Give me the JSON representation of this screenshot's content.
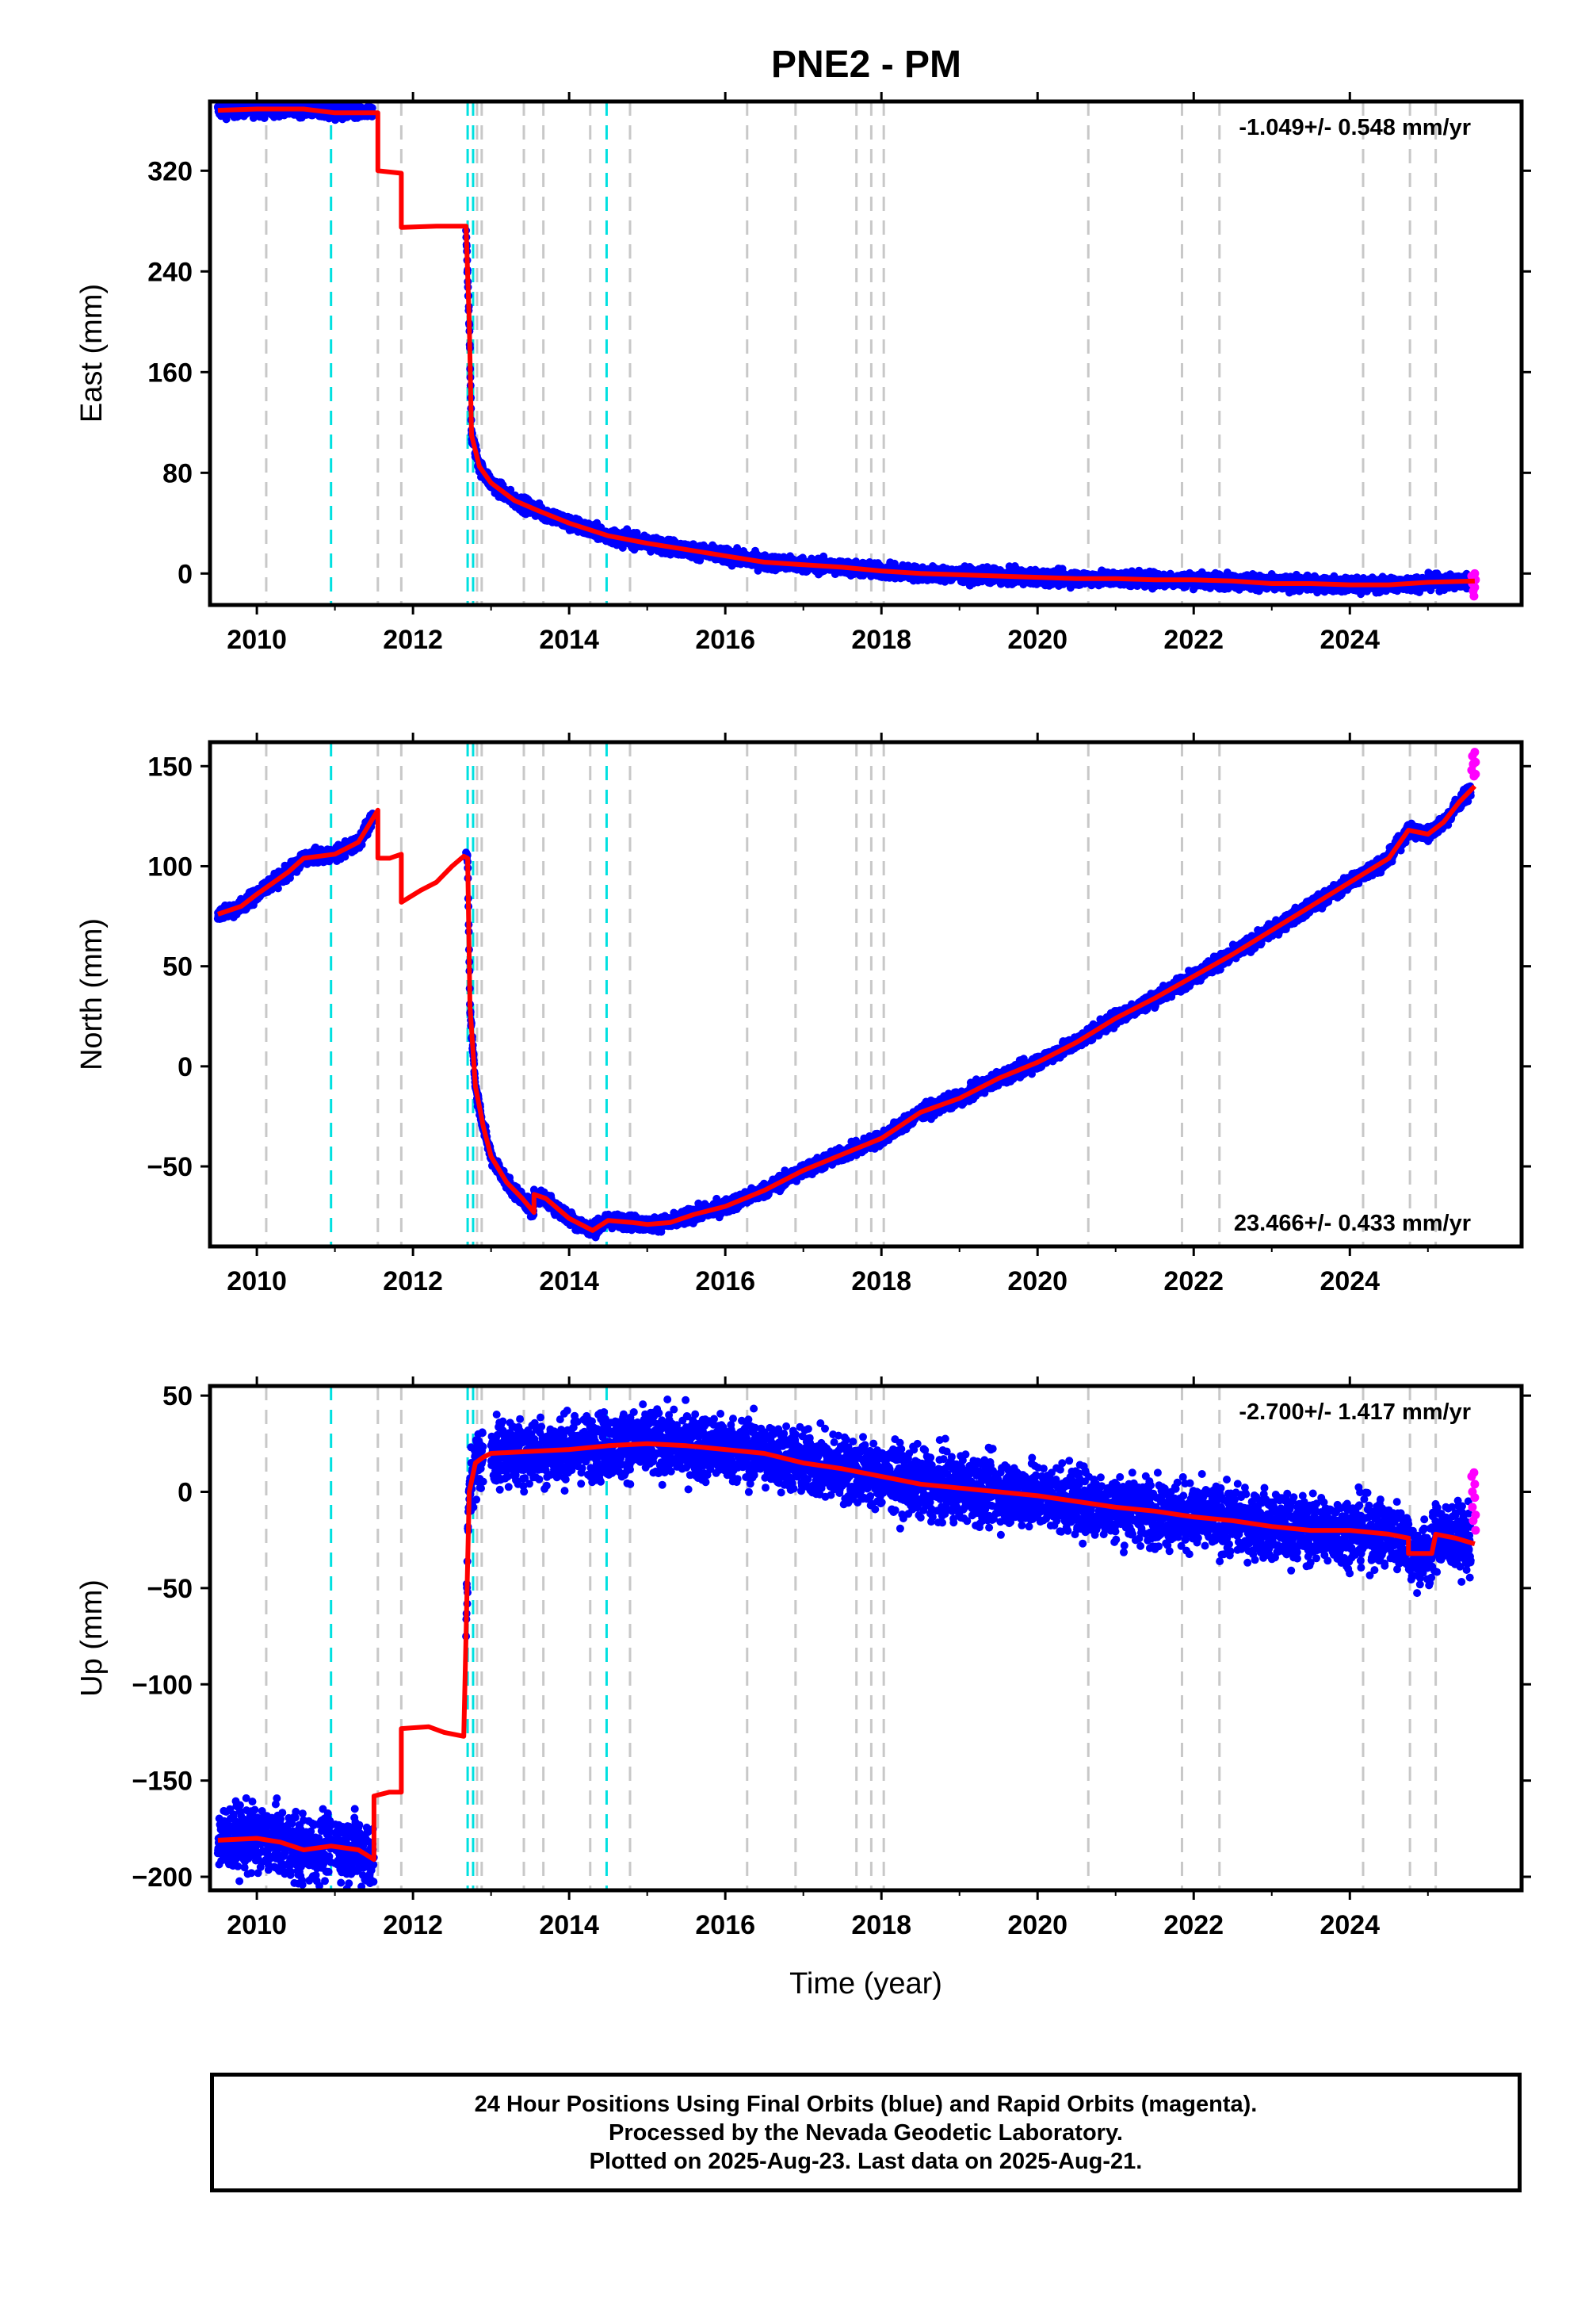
{
  "title": "PNE2 - PM",
  "colors": {
    "final_points": "#0000ff",
    "rapid_points": "#ff00ff",
    "model": "#ff0000",
    "gray_event": "#c8c8c8",
    "cyan_event": "#00e0e0"
  },
  "events": {
    "gray": [
      2010.12,
      2011.55,
      2011.85,
      2012.82,
      2012.88,
      2013.42,
      2013.67,
      2014.27,
      2014.78,
      2016.28,
      2016.9,
      2017.68,
      2017.87,
      2018.03,
      2020.65,
      2021.85,
      2022.33,
      2024.17,
      2024.77,
      2025.1
    ],
    "cyan": [
      2010.95,
      2012.7,
      2012.77,
      2014.48
    ]
  },
  "chart_data": [
    {
      "type": "scatter",
      "name": "east",
      "ylabel": "East (mm)",
      "xlim": [
        2009.4,
        2026.2
      ],
      "ylim": [
        -25,
        375
      ],
      "xticks": [
        "2010",
        "2012",
        "2014",
        "2016",
        "2018",
        "2020",
        "2022",
        "2024"
      ],
      "yticks": [
        "320",
        "240",
        "160",
        "80",
        "0"
      ],
      "ytick_values": [
        320,
        240,
        160,
        80,
        0
      ],
      "rate": "-1.049+/- 0.548 mm/yr",
      "rate_position": "top-right",
      "scatter": 4,
      "model": [
        [
          2009.5,
          368
        ],
        [
          2010.0,
          369
        ],
        [
          2010.6,
          369
        ],
        [
          2011.0,
          366
        ],
        [
          2011.5,
          366
        ],
        [
          2011.55,
          366
        ],
        [
          2011.55,
          320
        ],
        [
          2011.85,
          318
        ],
        [
          2011.85,
          275
        ],
        [
          2012.3,
          276
        ],
        [
          2012.68,
          276
        ],
        [
          2012.72,
          200
        ],
        [
          2012.75,
          110
        ],
        [
          2012.85,
          85
        ],
        [
          2013.0,
          72
        ],
        [
          2013.3,
          58
        ],
        [
          2013.6,
          50
        ],
        [
          2014.0,
          40
        ],
        [
          2014.5,
          30
        ],
        [
          2015.0,
          24
        ],
        [
          2015.5,
          19
        ],
        [
          2016.0,
          14
        ],
        [
          2016.5,
          9
        ],
        [
          2017.0,
          7
        ],
        [
          2017.5,
          5
        ],
        [
          2018.0,
          2
        ],
        [
          2018.5,
          0
        ],
        [
          2019.0,
          -1
        ],
        [
          2019.5,
          -2
        ],
        [
          2020.0,
          -3
        ],
        [
          2020.5,
          -4
        ],
        [
          2021.0,
          -4
        ],
        [
          2021.5,
          -5
        ],
        [
          2022.0,
          -5
        ],
        [
          2022.5,
          -6
        ],
        [
          2023.0,
          -8
        ],
        [
          2023.5,
          -8
        ],
        [
          2024.0,
          -9
        ],
        [
          2024.5,
          -9
        ],
        [
          2025.0,
          -7
        ],
        [
          2025.6,
          -6
        ]
      ],
      "final_segments": [
        [
          2009.5,
          2010.95
        ],
        [
          2011.0,
          2011.48
        ],
        [
          2012.68,
          2025.55
        ]
      ],
      "rapid_points": [
        [
          2025.56,
          -2
        ],
        [
          2025.57,
          -8
        ],
        [
          2025.58,
          -14
        ],
        [
          2025.59,
          -18
        ],
        [
          2025.6,
          0
        ],
        [
          2025.6,
          -11
        ],
        [
          2025.61,
          -5
        ]
      ]
    },
    {
      "type": "scatter",
      "name": "north",
      "ylabel": "North (mm)",
      "xlim": [
        2009.4,
        2026.2
      ],
      "ylim": [
        -90,
        162
      ],
      "xticks": [
        "2010",
        "2012",
        "2014",
        "2016",
        "2018",
        "2020",
        "2022",
        "2024"
      ],
      "yticks": [
        "150",
        "100",
        "50",
        "0",
        "−50"
      ],
      "ytick_values": [
        150,
        100,
        50,
        0,
        -50
      ],
      "rate": "23.466+/- 0.433 mm/yr",
      "rate_position": "bottom-right",
      "scatter": 2.5,
      "model": [
        [
          2009.5,
          76
        ],
        [
          2009.8,
          80
        ],
        [
          2010.0,
          86
        ],
        [
          2010.4,
          97
        ],
        [
          2010.6,
          104
        ],
        [
          2011.0,
          106
        ],
        [
          2011.3,
          112
        ],
        [
          2011.55,
          128
        ],
        [
          2011.55,
          104
        ],
        [
          2011.7,
          104
        ],
        [
          2011.85,
          106
        ],
        [
          2011.85,
          82
        ],
        [
          2012.1,
          88
        ],
        [
          2012.3,
          92
        ],
        [
          2012.5,
          100
        ],
        [
          2012.65,
          105
        ],
        [
          2012.7,
          104
        ],
        [
          2012.73,
          30
        ],
        [
          2012.8,
          -10
        ],
        [
          2012.9,
          -30
        ],
        [
          2013.0,
          -45
        ],
        [
          2013.2,
          -58
        ],
        [
          2013.4,
          -66
        ],
        [
          2013.55,
          -73
        ],
        [
          2013.55,
          -64
        ],
        [
          2013.7,
          -66
        ],
        [
          2014.0,
          -76
        ],
        [
          2014.3,
          -82
        ],
        [
          2014.5,
          -77
        ],
        [
          2014.8,
          -78
        ],
        [
          2015.0,
          -79
        ],
        [
          2015.3,
          -78
        ],
        [
          2015.6,
          -74
        ],
        [
          2016.0,
          -70
        ],
        [
          2016.5,
          -62
        ],
        [
          2017.0,
          -52
        ],
        [
          2017.5,
          -44
        ],
        [
          2018.0,
          -36
        ],
        [
          2018.5,
          -23
        ],
        [
          2019.0,
          -16
        ],
        [
          2019.5,
          -6
        ],
        [
          2020.0,
          2
        ],
        [
          2020.5,
          12
        ],
        [
          2021.0,
          24
        ],
        [
          2021.5,
          34
        ],
        [
          2022.0,
          45
        ],
        [
          2022.5,
          56
        ],
        [
          2023.0,
          68
        ],
        [
          2023.5,
          80
        ],
        [
          2024.0,
          92
        ],
        [
          2024.5,
          104
        ],
        [
          2024.75,
          118
        ],
        [
          2025.0,
          116
        ],
        [
          2025.2,
          122
        ],
        [
          2025.4,
          132
        ],
        [
          2025.6,
          140
        ]
      ],
      "final_segments": [
        [
          2009.5,
          2010.95
        ],
        [
          2011.0,
          2011.5
        ],
        [
          2012.68,
          2025.55
        ]
      ],
      "rapid_points": [
        [
          2025.56,
          148
        ],
        [
          2025.57,
          155
        ],
        [
          2025.58,
          151
        ],
        [
          2025.59,
          145
        ],
        [
          2025.6,
          157
        ],
        [
          2025.61,
          152
        ],
        [
          2025.61,
          146
        ]
      ]
    },
    {
      "type": "scatter",
      "name": "up",
      "ylabel": "Up (mm)",
      "xlabel": "Time (year)",
      "xlim": [
        2009.4,
        2026.2
      ],
      "ylim": [
        -207,
        55
      ],
      "xticks": [
        "2010",
        "2012",
        "2014",
        "2016",
        "2018",
        "2020",
        "2022",
        "2024"
      ],
      "yticks": [
        "50",
        "0",
        "−50",
        "−100",
        "−150",
        "−200"
      ],
      "ytick_values": [
        50,
        0,
        -50,
        -100,
        -150,
        -200
      ],
      "rate": "-2.700+/- 1.417 mm/yr",
      "rate_position": "top-right",
      "scatter": 12,
      "model": [
        [
          2009.5,
          -181
        ],
        [
          2010.0,
          -180
        ],
        [
          2010.3,
          -182
        ],
        [
          2010.6,
          -186
        ],
        [
          2010.95,
          -184
        ],
        [
          2011.3,
          -186
        ],
        [
          2011.5,
          -191
        ],
        [
          2011.5,
          -158
        ],
        [
          2011.7,
          -156
        ],
        [
          2011.85,
          -156
        ],
        [
          2011.85,
          -123
        ],
        [
          2012.2,
          -122
        ],
        [
          2012.4,
          -125
        ],
        [
          2012.65,
          -127
        ],
        [
          2012.72,
          0
        ],
        [
          2012.8,
          15
        ],
        [
          2012.9,
          18
        ],
        [
          2013.0,
          20
        ],
        [
          2013.5,
          21
        ],
        [
          2014.0,
          22
        ],
        [
          2014.5,
          24
        ],
        [
          2015.0,
          25
        ],
        [
          2015.5,
          24
        ],
        [
          2016.0,
          22
        ],
        [
          2016.5,
          20
        ],
        [
          2017.0,
          15
        ],
        [
          2017.5,
          12
        ],
        [
          2018.0,
          8
        ],
        [
          2018.5,
          4
        ],
        [
          2019.0,
          2
        ],
        [
          2019.5,
          0
        ],
        [
          2020.0,
          -2
        ],
        [
          2020.5,
          -5
        ],
        [
          2021.0,
          -8
        ],
        [
          2021.5,
          -10
        ],
        [
          2022.0,
          -13
        ],
        [
          2022.5,
          -15
        ],
        [
          2023.0,
          -18
        ],
        [
          2023.5,
          -20
        ],
        [
          2024.0,
          -20
        ],
        [
          2024.5,
          -22
        ],
        [
          2024.75,
          -24
        ],
        [
          2024.75,
          -32
        ],
        [
          2025.05,
          -32
        ],
        [
          2025.1,
          -22
        ],
        [
          2025.35,
          -24
        ],
        [
          2025.6,
          -27
        ]
      ],
      "final_segments": [
        [
          2009.5,
          2010.95
        ],
        [
          2011.0,
          2011.5
        ],
        [
          2012.68,
          2025.55
        ]
      ],
      "rapid_points": [
        [
          2025.56,
          8
        ],
        [
          2025.57,
          0
        ],
        [
          2025.57,
          -8
        ],
        [
          2025.58,
          -15
        ],
        [
          2025.59,
          10
        ],
        [
          2025.6,
          4
        ],
        [
          2025.6,
          -3
        ],
        [
          2025.61,
          -12
        ],
        [
          2025.61,
          -20
        ]
      ]
    }
  ],
  "footer": {
    "line1": "24 Hour Positions Using Final Orbits (blue) and Rapid Orbits (magenta).",
    "line2": "Processed by the Nevada Geodetic Laboratory.",
    "line3": "Plotted on 2025-Aug-23. Last data on 2025-Aug-21."
  }
}
